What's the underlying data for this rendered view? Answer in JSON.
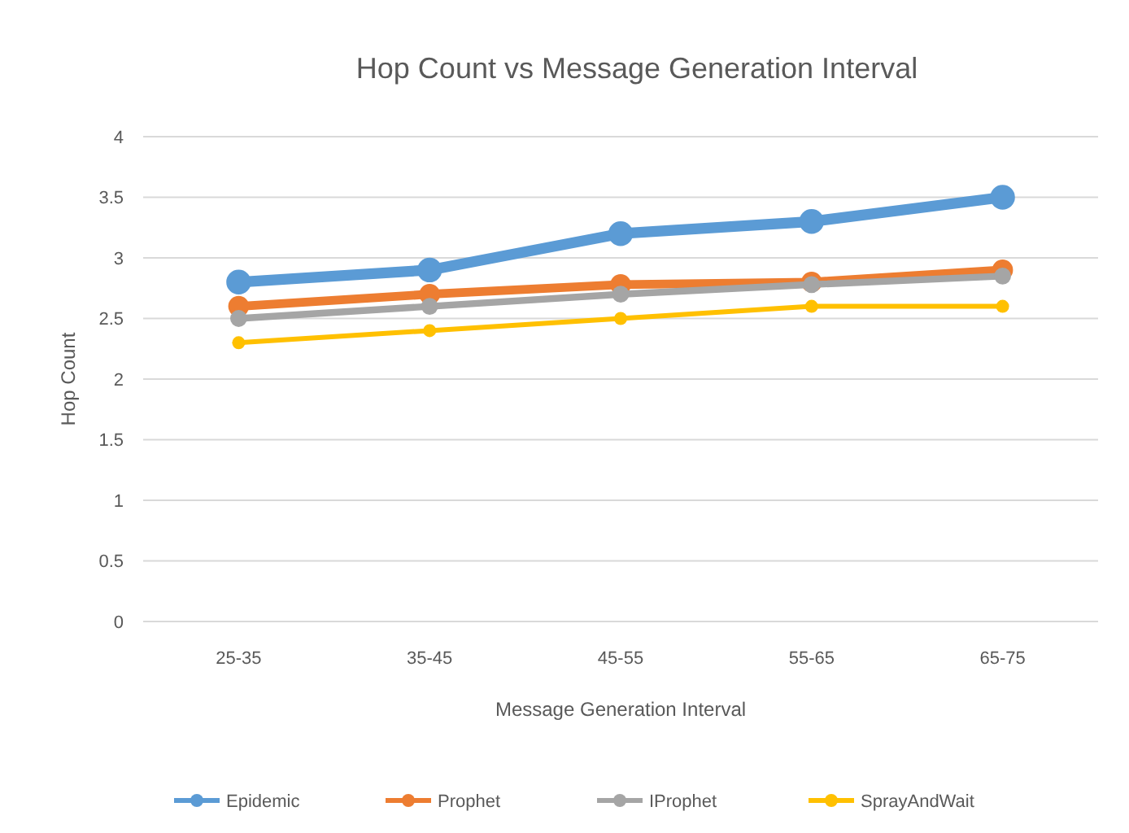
{
  "chart_data": {
    "type": "line",
    "title": "Hop Count vs Message Generation Interval",
    "xlabel": "Message Generation Interval",
    "ylabel": "Hop Count",
    "categories": [
      "25-35",
      "35-45",
      "45-55",
      "55-65",
      "65-75"
    ],
    "series": [
      {
        "name": "Epidemic",
        "color": "#5b9bd5",
        "values": [
          2.8,
          2.9,
          3.2,
          3.3,
          3.5
        ]
      },
      {
        "name": "Prophet",
        "color": "#ed7d31",
        "values": [
          2.6,
          2.7,
          2.78,
          2.8,
          2.9
        ]
      },
      {
        "name": "IProphet",
        "color": "#a5a5a5",
        "values": [
          2.5,
          2.6,
          2.7,
          2.78,
          2.85
        ]
      },
      {
        "name": "SprayAndWait",
        "color": "#ffc000",
        "values": [
          2.3,
          2.4,
          2.5,
          2.6,
          2.6
        ]
      }
    ],
    "ylim": [
      0,
      4
    ],
    "yticks": [
      0,
      0.5,
      1,
      1.5,
      2,
      2.5,
      3,
      3.5,
      4
    ],
    "grid": "y",
    "legend": "bottom",
    "marker": "circle",
    "line_style": "solid"
  }
}
